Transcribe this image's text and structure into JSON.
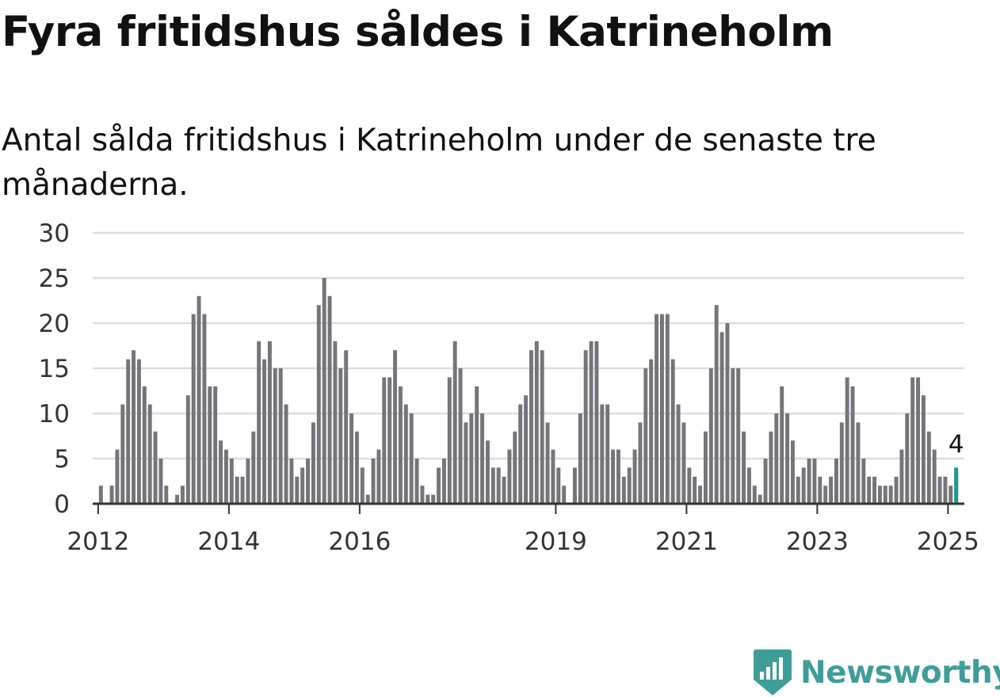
{
  "chart_data": {
    "type": "bar",
    "title": "Fyra fritidshus såldes i Katrineholm",
    "subtitle": "Antal sålda fritidshus i Katrineholm under de senaste tre månaderna.",
    "xlabel": "",
    "ylabel": "",
    "ylim": [
      0,
      30
    ],
    "yticks": [
      0,
      5,
      10,
      15,
      20,
      25,
      30
    ],
    "grid": true,
    "legend": "none",
    "x_range": [
      "2011-12",
      "2025-03"
    ],
    "xticks": [
      {
        "label": "2012",
        "month": "2012-01"
      },
      {
        "label": "2014",
        "month": "2014-01"
      },
      {
        "label": "2016",
        "month": "2016-01"
      },
      {
        "label": "2019",
        "month": "2019-01"
      },
      {
        "label": "2021",
        "month": "2021-01"
      },
      {
        "label": "2023",
        "month": "2023-01"
      },
      {
        "label": "2025",
        "month": "2025-01"
      }
    ],
    "series": [
      {
        "start": "2011-12",
        "values": [
          0,
          2,
          0,
          2,
          6,
          11,
          16,
          17,
          16,
          13,
          11,
          8,
          5,
          2,
          0,
          1,
          2,
          12,
          21,
          23,
          21,
          13,
          13,
          7,
          6,
          5,
          3,
          3,
          5,
          8,
          18,
          16,
          18,
          15,
          15,
          11,
          5,
          3,
          4,
          5,
          9,
          22,
          25,
          23,
          18,
          15,
          17,
          10,
          8,
          4,
          1,
          5,
          6,
          14,
          14,
          17,
          13,
          11,
          10,
          5,
          2,
          1,
          1,
          4,
          5,
          14,
          18,
          15,
          9,
          10,
          13,
          10,
          7,
          4,
          4,
          3,
          6,
          8,
          11,
          12,
          17,
          18,
          17,
          9,
          6,
          4,
          2,
          0,
          4,
          10,
          17,
          18,
          18,
          11,
          11,
          6,
          6,
          3,
          4,
          6,
          9,
          15,
          16,
          21,
          21,
          21,
          16,
          11,
          9,
          4,
          3,
          2,
          8,
          15,
          22,
          19,
          20,
          15,
          15,
          8,
          4,
          2,
          1,
          5,
          8,
          10,
          13,
          10,
          7,
          3,
          4,
          5,
          5,
          3,
          2,
          3,
          5,
          9,
          14,
          13,
          9,
          5,
          3,
          3,
          2,
          2,
          2,
          3,
          6,
          10,
          14,
          14,
          12,
          8,
          6,
          3,
          3,
          2,
          4
        ]
      }
    ],
    "highlight": {
      "month": "2025-02",
      "value": 4,
      "label": "4",
      "color": "#1a9a96"
    },
    "colors": {
      "bar": "#75747a",
      "highlight": "#1a9a96",
      "grid": "#dddddd",
      "axis": "#333333"
    }
  },
  "logo": {
    "text": "Newsworthy",
    "icon": "newsworthy-logo-icon",
    "color": "#3f9d99"
  }
}
